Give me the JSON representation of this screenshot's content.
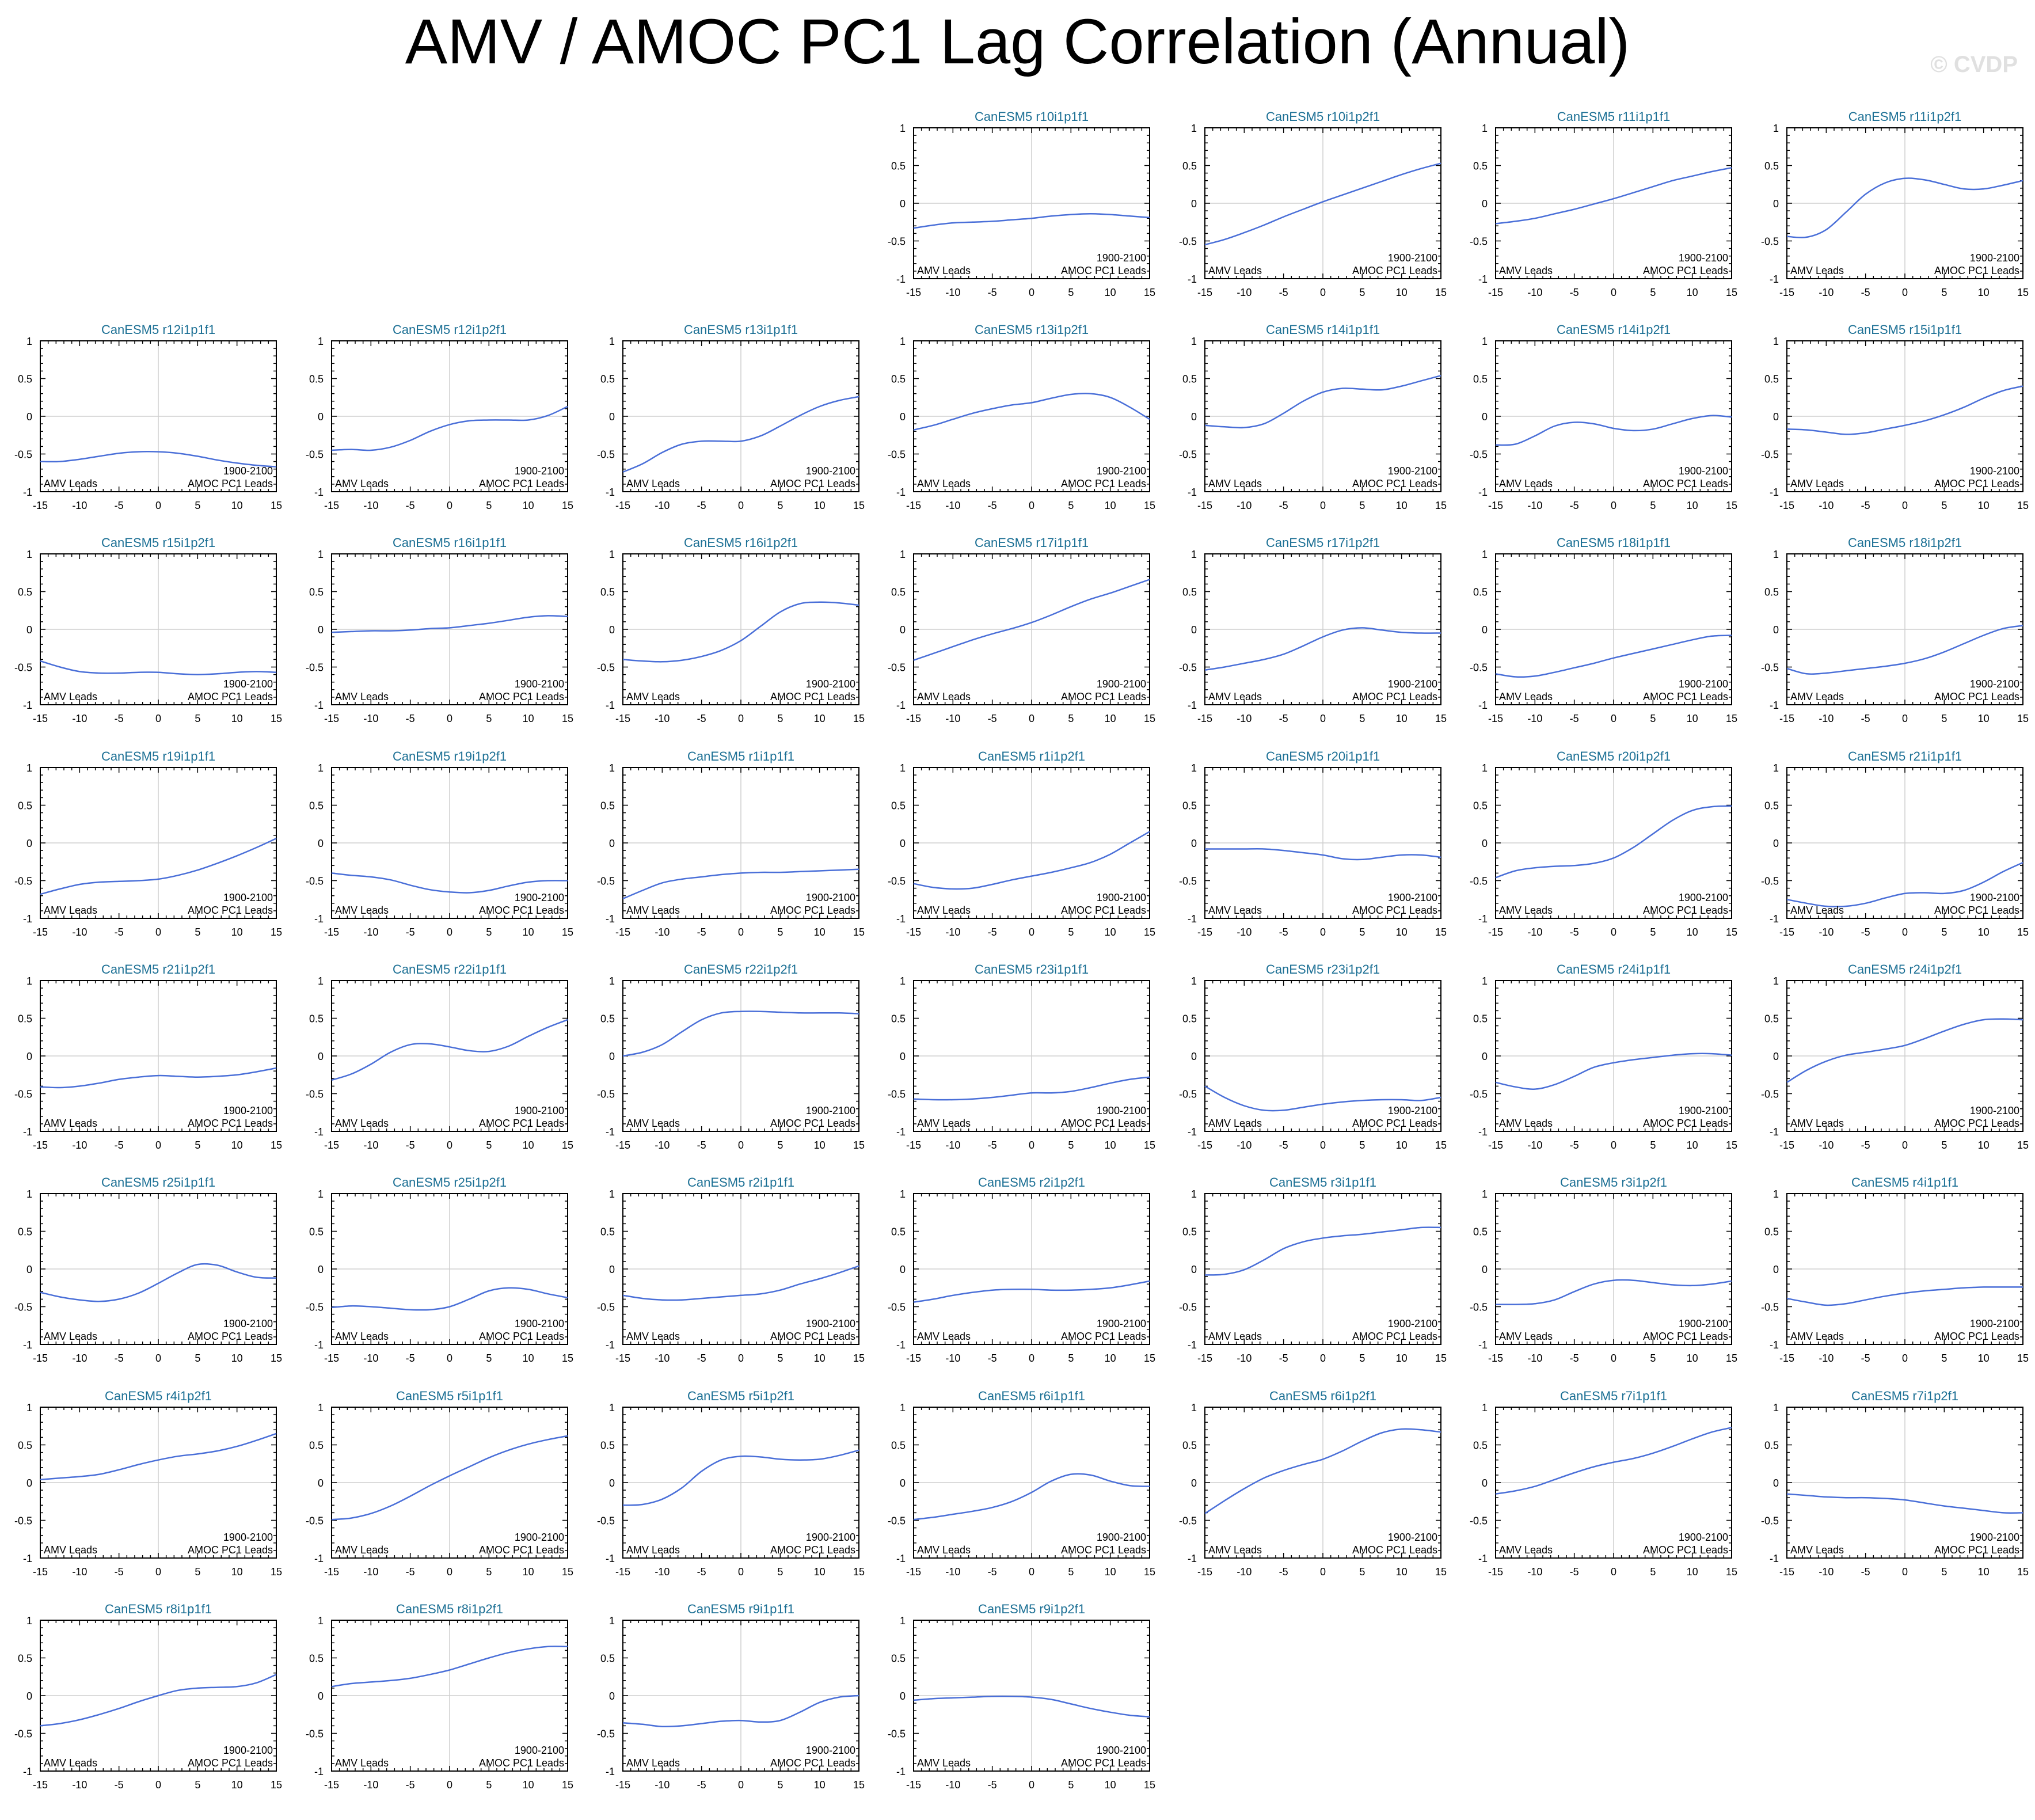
{
  "figure": {
    "title": "AMV / AMOC PC1 Lag Correlation (Annual)",
    "watermark": "© CVDP"
  },
  "chart_data": {
    "type": "line",
    "x": [
      -15,
      -12.5,
      -10,
      -7.5,
      -5,
      -2.5,
      0,
      2.5,
      5,
      7.5,
      10,
      12.5,
      15
    ],
    "xticks": [
      "-15",
      "-10",
      "-5",
      "0",
      "5",
      "10",
      "15"
    ],
    "yticks": [
      "1",
      "0.5",
      "0",
      "-0.5",
      "-1"
    ],
    "xlim": [
      -15,
      15
    ],
    "ylim": [
      -1,
      1
    ],
    "grid": "vertical at 0, horizontal at 0",
    "period": "1900-2100",
    "left_note": "AMV Leads",
    "right_note": "AMOC PC1 Leads",
    "layout": "7 columns, first row starts at column 4",
    "panels": [
      {
        "title": "CanESM5 r10i1p1f1",
        "y": [
          -0.33,
          -0.29,
          -0.26,
          -0.25,
          -0.24,
          -0.22,
          -0.2,
          -0.17,
          -0.15,
          -0.14,
          -0.15,
          -0.17,
          -0.19
        ]
      },
      {
        "title": "CanESM5 r10i1p2f1",
        "y": [
          -0.55,
          -0.48,
          -0.39,
          -0.29,
          -0.18,
          -0.08,
          0.02,
          0.11,
          0.2,
          0.29,
          0.38,
          0.46,
          0.53
        ]
      },
      {
        "title": "CanESM5 r11i1p1f1",
        "y": [
          -0.27,
          -0.24,
          -0.2,
          -0.14,
          -0.08,
          -0.01,
          0.06,
          0.14,
          0.22,
          0.3,
          0.36,
          0.42,
          0.47
        ]
      },
      {
        "title": "CanESM5 r11i1p2f1",
        "y": [
          -0.44,
          -0.45,
          -0.35,
          -0.12,
          0.12,
          0.27,
          0.33,
          0.31,
          0.25,
          0.19,
          0.19,
          0.24,
          0.3
        ]
      },
      {
        "title": "CanESM5 r12i1p1f1",
        "y": [
          -0.6,
          -0.6,
          -0.57,
          -0.53,
          -0.49,
          -0.47,
          -0.47,
          -0.49,
          -0.53,
          -0.58,
          -0.62,
          -0.65,
          -0.67
        ]
      },
      {
        "title": "CanESM5 r12i1p2f1",
        "y": [
          -0.45,
          -0.44,
          -0.45,
          -0.41,
          -0.32,
          -0.2,
          -0.11,
          -0.06,
          -0.05,
          -0.05,
          -0.05,
          0.01,
          0.13
        ]
      },
      {
        "title": "CanESM5 r13i1p1f1",
        "y": [
          -0.74,
          -0.63,
          -0.48,
          -0.37,
          -0.33,
          -0.33,
          -0.33,
          -0.26,
          -0.13,
          0.01,
          0.13,
          0.21,
          0.26
        ]
      },
      {
        "title": "CanESM5 r13i1p2f1",
        "y": [
          -0.18,
          -0.12,
          -0.04,
          0.04,
          0.1,
          0.15,
          0.18,
          0.24,
          0.29,
          0.3,
          0.25,
          0.12,
          -0.04
        ]
      },
      {
        "title": "CanESM5 r14i1p1f1",
        "y": [
          -0.12,
          -0.14,
          -0.15,
          -0.1,
          0.04,
          0.2,
          0.32,
          0.37,
          0.36,
          0.35,
          0.4,
          0.47,
          0.54
        ]
      },
      {
        "title": "CanESM5 r14i1p2f1",
        "y": [
          -0.38,
          -0.37,
          -0.26,
          -0.13,
          -0.08,
          -0.1,
          -0.16,
          -0.19,
          -0.17,
          -0.1,
          -0.03,
          0.01,
          -0.01
        ]
      },
      {
        "title": "CanESM5 r15i1p1f1",
        "y": [
          -0.17,
          -0.18,
          -0.21,
          -0.24,
          -0.22,
          -0.17,
          -0.12,
          -0.06,
          0.02,
          0.12,
          0.24,
          0.34,
          0.4
        ]
      },
      {
        "title": "CanESM5 r15i1p2f1",
        "y": [
          -0.42,
          -0.5,
          -0.56,
          -0.58,
          -0.58,
          -0.57,
          -0.57,
          -0.59,
          -0.6,
          -0.59,
          -0.57,
          -0.56,
          -0.57
        ]
      },
      {
        "title": "CanESM5 r16i1p1f1",
        "y": [
          -0.04,
          -0.03,
          -0.02,
          -0.02,
          -0.01,
          0.01,
          0.02,
          0.05,
          0.08,
          0.12,
          0.16,
          0.18,
          0.17
        ]
      },
      {
        "title": "CanESM5 r16i1p2f1",
        "y": [
          -0.4,
          -0.42,
          -0.43,
          -0.41,
          -0.36,
          -0.28,
          -0.15,
          0.04,
          0.23,
          0.34,
          0.36,
          0.35,
          0.32
        ]
      },
      {
        "title": "CanESM5 r17i1p1f1",
        "y": [
          -0.41,
          -0.32,
          -0.23,
          -0.14,
          -0.06,
          0.01,
          0.09,
          0.19,
          0.3,
          0.4,
          0.48,
          0.57,
          0.66
        ]
      },
      {
        "title": "CanESM5 r17i1p2f1",
        "y": [
          -0.54,
          -0.5,
          -0.45,
          -0.4,
          -0.33,
          -0.22,
          -0.1,
          -0.01,
          0.02,
          -0.01,
          -0.04,
          -0.05,
          -0.05
        ]
      },
      {
        "title": "CanESM5 r18i1p1f1",
        "y": [
          -0.59,
          -0.63,
          -0.62,
          -0.57,
          -0.51,
          -0.45,
          -0.38,
          -0.32,
          -0.26,
          -0.2,
          -0.14,
          -0.09,
          -0.08
        ]
      },
      {
        "title": "CanESM5 r18i1p2f1",
        "y": [
          -0.52,
          -0.59,
          -0.58,
          -0.55,
          -0.52,
          -0.49,
          -0.45,
          -0.39,
          -0.3,
          -0.19,
          -0.08,
          0.01,
          0.05
        ]
      },
      {
        "title": "CanESM5 r19i1p1f1",
        "y": [
          -0.68,
          -0.61,
          -0.55,
          -0.52,
          -0.51,
          -0.5,
          -0.48,
          -0.43,
          -0.36,
          -0.27,
          -0.17,
          -0.06,
          0.06
        ]
      },
      {
        "title": "CanESM5 r19i1p2f1",
        "y": [
          -0.4,
          -0.43,
          -0.45,
          -0.49,
          -0.56,
          -0.62,
          -0.65,
          -0.66,
          -0.63,
          -0.57,
          -0.52,
          -0.5,
          -0.5
        ]
      },
      {
        "title": "CanESM5 r1i1p1f1",
        "y": [
          -0.74,
          -0.63,
          -0.53,
          -0.48,
          -0.45,
          -0.42,
          -0.4,
          -0.39,
          -0.39,
          -0.38,
          -0.37,
          -0.36,
          -0.35
        ]
      },
      {
        "title": "CanESM5 r1i1p2f1",
        "y": [
          -0.54,
          -0.59,
          -0.61,
          -0.6,
          -0.55,
          -0.49,
          -0.44,
          -0.39,
          -0.33,
          -0.26,
          -0.15,
          0,
          0.15
        ]
      },
      {
        "title": "CanESM5 r20i1p1f1",
        "y": [
          -0.08,
          -0.08,
          -0.08,
          -0.08,
          -0.1,
          -0.13,
          -0.16,
          -0.21,
          -0.22,
          -0.19,
          -0.16,
          -0.16,
          -0.19
        ]
      },
      {
        "title": "CanESM5 r20i1p2f1",
        "y": [
          -0.46,
          -0.37,
          -0.33,
          -0.31,
          -0.3,
          -0.27,
          -0.2,
          -0.06,
          0.12,
          0.3,
          0.43,
          0.48,
          0.49
        ]
      },
      {
        "title": "CanESM5 r21i1p1f1",
        "y": [
          -0.75,
          -0.8,
          -0.84,
          -0.84,
          -0.8,
          -0.73,
          -0.67,
          -0.66,
          -0.67,
          -0.63,
          -0.52,
          -0.38,
          -0.26
        ]
      },
      {
        "title": "CanESM5 r21i1p2f1",
        "y": [
          -0.41,
          -0.42,
          -0.4,
          -0.36,
          -0.31,
          -0.28,
          -0.26,
          -0.27,
          -0.28,
          -0.27,
          -0.25,
          -0.21,
          -0.16
        ]
      },
      {
        "title": "CanESM5 r22i1p1f1",
        "y": [
          -0.32,
          -0.24,
          -0.11,
          0.05,
          0.15,
          0.16,
          0.12,
          0.07,
          0.06,
          0.13,
          0.26,
          0.38,
          0.48
        ]
      },
      {
        "title": "CanESM5 r22i1p2f1",
        "y": [
          0,
          0.05,
          0.15,
          0.32,
          0.48,
          0.57,
          0.59,
          0.59,
          0.58,
          0.57,
          0.57,
          0.57,
          0.56
        ]
      },
      {
        "title": "CanESM5 r23i1p1f1",
        "y": [
          -0.57,
          -0.58,
          -0.58,
          -0.57,
          -0.55,
          -0.52,
          -0.49,
          -0.49,
          -0.47,
          -0.42,
          -0.36,
          -0.31,
          -0.28
        ]
      },
      {
        "title": "CanESM5 r23i1p2f1",
        "y": [
          -0.4,
          -0.55,
          -0.66,
          -0.72,
          -0.72,
          -0.68,
          -0.64,
          -0.61,
          -0.59,
          -0.58,
          -0.58,
          -0.59,
          -0.55
        ]
      },
      {
        "title": "CanESM5 r24i1p1f1",
        "y": [
          -0.35,
          -0.41,
          -0.44,
          -0.38,
          -0.27,
          -0.15,
          -0.09,
          -0.05,
          -0.02,
          0.01,
          0.03,
          0.03,
          0.01
        ]
      },
      {
        "title": "CanESM5 r24i1p2f1",
        "y": [
          -0.35,
          -0.19,
          -0.07,
          0.01,
          0.05,
          0.09,
          0.14,
          0.23,
          0.33,
          0.42,
          0.48,
          0.49,
          0.48
        ]
      },
      {
        "title": "CanESM5 r25i1p1f1",
        "y": [
          -0.31,
          -0.37,
          -0.41,
          -0.43,
          -0.4,
          -0.32,
          -0.19,
          -0.05,
          0.06,
          0.05,
          -0.04,
          -0.11,
          -0.12
        ]
      },
      {
        "title": "CanESM5 r25i1p2f1",
        "y": [
          -0.51,
          -0.49,
          -0.5,
          -0.52,
          -0.54,
          -0.54,
          -0.5,
          -0.4,
          -0.29,
          -0.25,
          -0.27,
          -0.33,
          -0.38
        ]
      },
      {
        "title": "CanESM5 r2i1p1f1",
        "y": [
          -0.35,
          -0.39,
          -0.41,
          -0.41,
          -0.39,
          -0.37,
          -0.35,
          -0.33,
          -0.28,
          -0.2,
          -0.13,
          -0.05,
          0.04
        ]
      },
      {
        "title": "CanESM5 r2i1p2f1",
        "y": [
          -0.44,
          -0.4,
          -0.35,
          -0.31,
          -0.28,
          -0.27,
          -0.27,
          -0.28,
          -0.28,
          -0.27,
          -0.25,
          -0.21,
          -0.16
        ]
      },
      {
        "title": "CanESM5 r3i1p1f1",
        "y": [
          -0.08,
          -0.07,
          -0.01,
          0.12,
          0.27,
          0.36,
          0.41,
          0.44,
          0.46,
          0.49,
          0.52,
          0.55,
          0.55
        ]
      },
      {
        "title": "CanESM5 r3i1p2f1",
        "y": [
          -0.47,
          -0.47,
          -0.46,
          -0.41,
          -0.3,
          -0.2,
          -0.15,
          -0.15,
          -0.18,
          -0.21,
          -0.22,
          -0.2,
          -0.16
        ]
      },
      {
        "title": "CanESM5 r4i1p1f1",
        "y": [
          -0.39,
          -0.44,
          -0.48,
          -0.46,
          -0.41,
          -0.36,
          -0.32,
          -0.29,
          -0.27,
          -0.25,
          -0.24,
          -0.24,
          -0.24
        ]
      },
      {
        "title": "CanESM5 r4i1p2f1",
        "y": [
          0.04,
          0.06,
          0.08,
          0.11,
          0.17,
          0.24,
          0.3,
          0.35,
          0.38,
          0.42,
          0.48,
          0.56,
          0.65
        ]
      },
      {
        "title": "CanESM5 r5i1p1f1",
        "y": [
          -0.49,
          -0.47,
          -0.41,
          -0.31,
          -0.18,
          -0.04,
          0.09,
          0.21,
          0.33,
          0.43,
          0.51,
          0.57,
          0.62
        ]
      },
      {
        "title": "CanESM5 r5i1p2f1",
        "y": [
          -0.3,
          -0.29,
          -0.22,
          -0.07,
          0.15,
          0.3,
          0.35,
          0.34,
          0.31,
          0.3,
          0.31,
          0.36,
          0.43
        ]
      },
      {
        "title": "CanESM5 r6i1p1f1",
        "y": [
          -0.49,
          -0.46,
          -0.42,
          -0.38,
          -0.33,
          -0.25,
          -0.13,
          0.02,
          0.11,
          0.1,
          0.02,
          -0.04,
          -0.05
        ]
      },
      {
        "title": "CanESM5 r6i1p2f1",
        "y": [
          -0.41,
          -0.24,
          -0.08,
          0.06,
          0.16,
          0.24,
          0.31,
          0.42,
          0.55,
          0.66,
          0.71,
          0.7,
          0.67
        ]
      },
      {
        "title": "CanESM5 r7i1p1f1",
        "y": [
          -0.15,
          -0.11,
          -0.05,
          0.04,
          0.13,
          0.21,
          0.27,
          0.32,
          0.39,
          0.48,
          0.58,
          0.67,
          0.73
        ]
      },
      {
        "title": "CanESM5 r7i1p2f1",
        "y": [
          -0.15,
          -0.17,
          -0.19,
          -0.2,
          -0.2,
          -0.21,
          -0.23,
          -0.27,
          -0.31,
          -0.34,
          -0.37,
          -0.4,
          -0.4
        ]
      },
      {
        "title": "CanESM5 r8i1p1f1",
        "y": [
          -0.4,
          -0.37,
          -0.32,
          -0.25,
          -0.17,
          -0.08,
          0,
          0.07,
          0.1,
          0.11,
          0.12,
          0.17,
          0.28
        ]
      },
      {
        "title": "CanESM5 r8i1p2f1",
        "y": [
          0.12,
          0.16,
          0.18,
          0.2,
          0.23,
          0.28,
          0.34,
          0.42,
          0.5,
          0.57,
          0.62,
          0.65,
          0.65
        ]
      },
      {
        "title": "CanESM5 r9i1p1f1",
        "y": [
          -0.36,
          -0.38,
          -0.41,
          -0.4,
          -0.37,
          -0.34,
          -0.33,
          -0.35,
          -0.33,
          -0.22,
          -0.09,
          -0.02,
          0
        ]
      },
      {
        "title": "CanESM5 r9i1p2f1",
        "y": [
          -0.06,
          -0.04,
          -0.03,
          -0.02,
          -0.01,
          -0.01,
          -0.02,
          -0.05,
          -0.11,
          -0.17,
          -0.22,
          -0.26,
          -0.28
        ]
      }
    ]
  }
}
